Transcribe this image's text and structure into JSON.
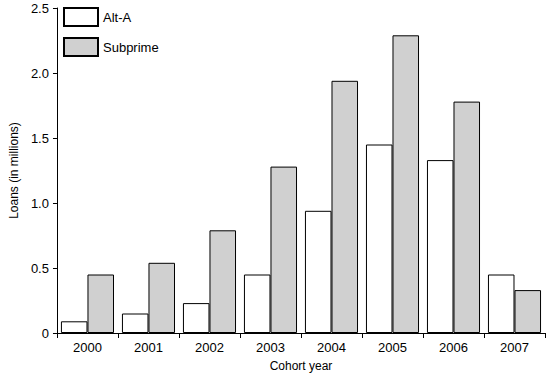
{
  "chart_data": {
    "type": "bar",
    "x_label": "Cohort year",
    "y_label": "Loans (in millions)",
    "categories": [
      "2000",
      "2001",
      "2002",
      "2003",
      "2004",
      "2005",
      "2006",
      "2007"
    ],
    "series": [
      {
        "name": "Alt-A",
        "color": "#ffffff",
        "values": [
          0.09,
          0.15,
          0.23,
          0.45,
          0.94,
          1.45,
          1.33,
          0.45
        ]
      },
      {
        "name": "Subprime",
        "color": "#d0d0d0",
        "values": [
          0.45,
          0.54,
          0.79,
          1.28,
          1.94,
          2.29,
          1.78,
          0.33
        ]
      }
    ],
    "ylim": [
      0,
      2.5
    ],
    "yticks": [
      0,
      0.5,
      {
        "value": 1,
        "label": "1.0"
      },
      1.5,
      {
        "value": 2,
        "label": "2.0"
      },
      2.5
    ],
    "grid": false,
    "legend": "upper left"
  }
}
